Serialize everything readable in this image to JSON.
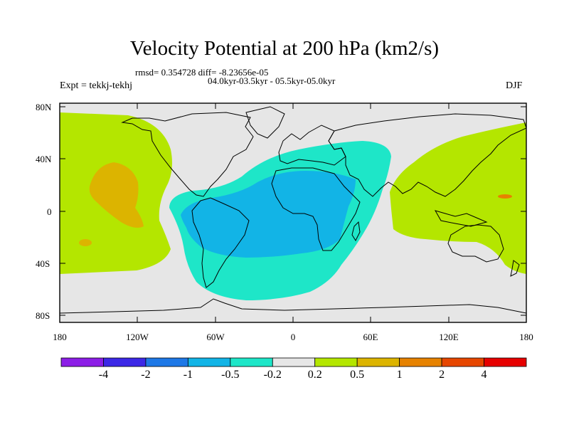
{
  "title": "Velocity Potential at 200 hPa (km2/s)",
  "stats_line": "rmsd= 0.354728 diff= -8.23656e-05",
  "period_line": "04.0kyr-03.5kyr - 05.5kyr-05.0kyr",
  "experiment": "Expt = tekkj-tekhj",
  "season": "DJF",
  "y_axis_labels": [
    "80N",
    "40N",
    "0",
    "40S",
    "80S"
  ],
  "x_axis_labels": [
    "180",
    "120W",
    "60W",
    "0",
    "60E",
    "120E",
    "180"
  ],
  "colorbar": {
    "colors": [
      "#8c1ee6",
      "#3c28e6",
      "#1e78e6",
      "#12b4e6",
      "#1ee6c8",
      "#e6e6e6",
      "#b4e600",
      "#dcb400",
      "#e68200",
      "#e64600",
      "#e60000"
    ],
    "labels": [
      "-4",
      "-2",
      "-1",
      "-0.5",
      "-0.2",
      "0.2",
      "0.5",
      "1",
      "2",
      "4"
    ]
  },
  "colors": {
    "background_field": "#e6e6e6",
    "negative_weak": "#1ee6c8",
    "negative_moderate": "#12b4e6",
    "positive_weak": "#b4e600",
    "positive_moderate": "#dcb400",
    "positive_strong": "#e68200"
  }
}
